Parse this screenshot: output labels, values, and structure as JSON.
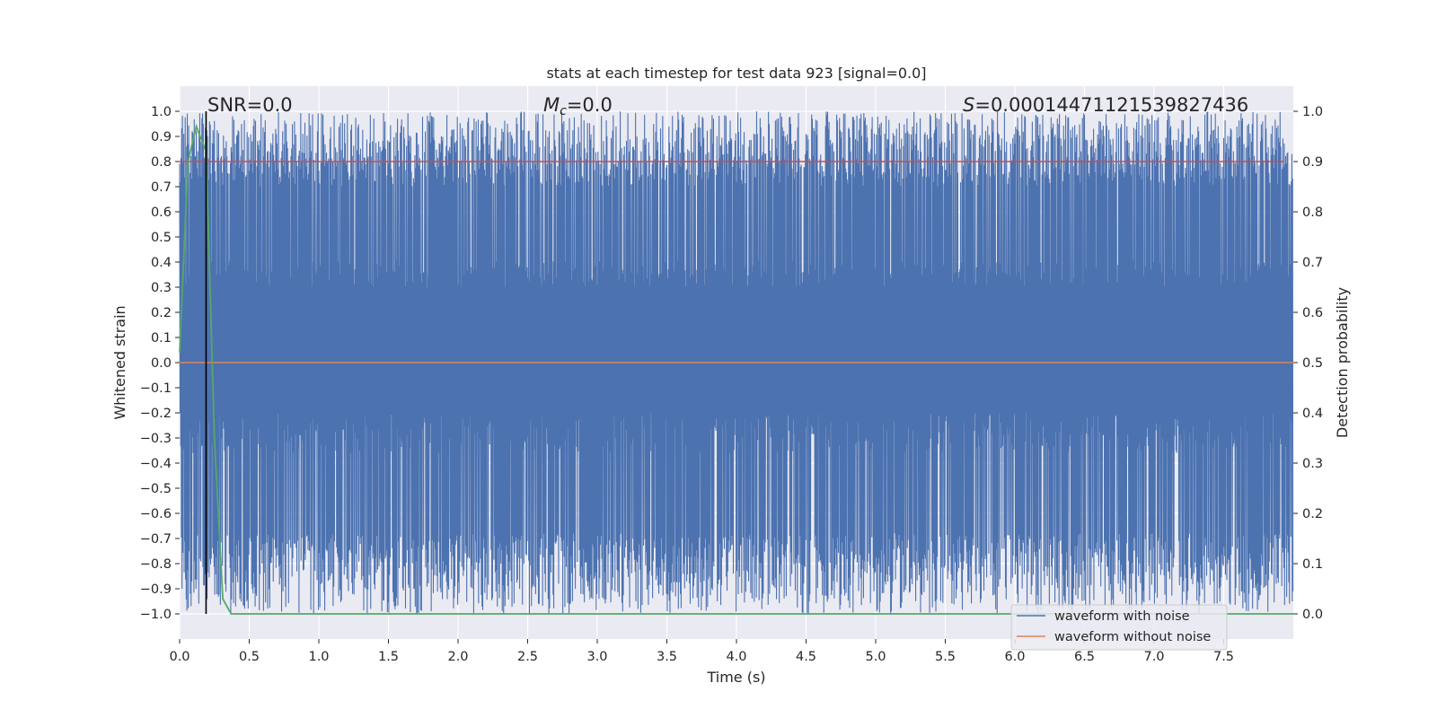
{
  "chart_data": {
    "type": "line",
    "title": "stats at each timestep for test data 923 [signal=0.0]",
    "xlabel": "Time (s)",
    "ylabel": "Whitened strain",
    "ylabel_right": "Detection probability",
    "xlim": [
      0.0,
      8.0
    ],
    "ylim": [
      -1.1,
      1.1
    ],
    "ylim_right": [
      -0.05,
      1.05
    ],
    "x_ticks": [
      "0.0",
      "0.5",
      "1.0",
      "1.5",
      "2.0",
      "2.5",
      "3.0",
      "3.5",
      "4.0",
      "4.5",
      "5.0",
      "5.5",
      "6.0",
      "6.5",
      "7.0",
      "7.5"
    ],
    "y_ticks": [
      "1.0",
      "0.9",
      "0.8",
      "0.7",
      "0.6",
      "0.5",
      "0.4",
      "0.3",
      "0.2",
      "0.1",
      "0.0",
      "−0.1",
      "−0.2",
      "−0.3",
      "−0.4",
      "−0.5",
      "−0.6",
      "−0.7",
      "−0.8",
      "−0.9",
      "−1.0"
    ],
    "y_ticks_right": [
      "1.0",
      "0.9",
      "0.8",
      "0.7",
      "0.6",
      "0.5",
      "0.4",
      "0.3",
      "0.2",
      "0.1",
      "0.0"
    ],
    "annotations": {
      "snr": "SNR=0.0",
      "mc": "=0.0",
      "mc_symbol": "M",
      "mc_sub": "c",
      "s": "=0.0001447112153982743​6",
      "s_symbol": "S"
    },
    "legend": {
      "placement": "lower-right",
      "entries": [
        "waveform with noise",
        "waveform without noise"
      ]
    },
    "series": [
      {
        "name": "waveform with noise",
        "axis": "left",
        "color": "#4c72b0",
        "kind": "noise",
        "range": [
          -1.0,
          1.0
        ]
      },
      {
        "name": "waveform without noise",
        "axis": "left",
        "color": "#dd8452",
        "x": [
          0.0,
          8.0
        ],
        "values": [
          0.0,
          0.0
        ]
      },
      {
        "axis": "right",
        "color": "#55a868",
        "x": [
          0.0,
          0.06,
          0.12,
          0.19,
          0.25,
          0.31,
          0.37,
          8.0
        ],
        "values": [
          0.52,
          0.9,
          0.97,
          0.92,
          0.35,
          0.03,
          0.0,
          0.0
        ]
      }
    ],
    "threshold": {
      "axis": "right",
      "value": 0.9,
      "color": "#c44e52"
    },
    "marker_line": {
      "x": 0.19,
      "color": "#000000"
    },
    "grid": true
  }
}
